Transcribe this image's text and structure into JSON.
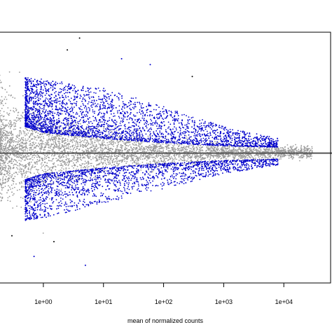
{
  "chart_data": {
    "type": "scatter",
    "title": "",
    "xlabel": "mean of normalized counts",
    "ylabel": "",
    "x_scale": "log10",
    "xlim": [
      0.18,
      60000
    ],
    "ylim": [
      -4.4,
      4.1
    ],
    "x_ticks": [
      {
        "value": 1,
        "label": "1e+00"
      },
      {
        "value": 10,
        "label": "1e+01"
      },
      {
        "value": 100,
        "label": "1e+02"
      },
      {
        "value": 1000,
        "label": "1e+03"
      },
      {
        "value": 10000,
        "label": "1e+04"
      }
    ],
    "reference_line": {
      "y": 0,
      "color": "#555555"
    },
    "grid": false,
    "legend": "none",
    "series": [
      {
        "color": "#9a9a9a",
        "point_count_estimate": 15000,
        "spread_profile": [
          {
            "x": 0.2,
            "y_min": -1.8,
            "y_max": 2.0
          },
          {
            "x": 1,
            "y_min": -1.2,
            "y_max": 1.4
          },
          {
            "x": 10,
            "y_min": -0.7,
            "y_max": 0.8
          },
          {
            "x": 100,
            "y_min": -0.45,
            "y_max": 0.5
          },
          {
            "x": 1000,
            "y_min": -0.3,
            "y_max": 0.35
          },
          {
            "x": 10000,
            "y_min": -0.2,
            "y_max": 0.25
          }
        ]
      },
      {
        "color": "#0000cc",
        "point_count_estimate": 12000,
        "upper_band": [
          {
            "x": 0.5,
            "y_from": 0.9,
            "y_to": 2.6
          },
          {
            "x": 1,
            "y_from": 0.7,
            "y_to": 2.5
          },
          {
            "x": 10,
            "y_from": 0.5,
            "y_to": 2.2
          },
          {
            "x": 100,
            "y_from": 0.35,
            "y_to": 1.6
          },
          {
            "x": 1000,
            "y_from": 0.25,
            "y_to": 0.9
          },
          {
            "x": 8000,
            "y_from": 0.2,
            "y_to": 0.5
          }
        ],
        "lower_band": [
          {
            "x": 0.5,
            "y_from": -0.9,
            "y_to": -2.3
          },
          {
            "x": 1,
            "y_from": -0.7,
            "y_to": -2.2
          },
          {
            "x": 10,
            "y_from": -0.5,
            "y_to": -1.7
          },
          {
            "x": 100,
            "y_from": -0.35,
            "y_to": -1.2
          },
          {
            "x": 1000,
            "y_from": -0.25,
            "y_to": -0.7
          },
          {
            "x": 8000,
            "y_from": -0.2,
            "y_to": -0.4
          }
        ]
      }
    ]
  }
}
